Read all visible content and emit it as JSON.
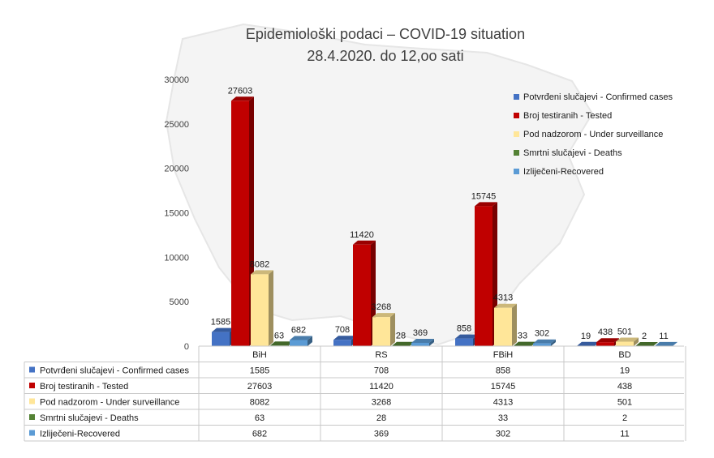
{
  "chart_data": {
    "type": "bar",
    "title": "Epidemiološki podaci – COVID-19 situation",
    "subtitle": "28.4.2020. do 12,oo sati",
    "categories": [
      "BiH",
      "RS",
      "FBiH",
      "BD"
    ],
    "ylim": [
      0,
      30000
    ],
    "yticks": [
      0,
      5000,
      10000,
      15000,
      20000,
      25000,
      30000
    ],
    "legend_position": "right",
    "series": [
      {
        "name": "Potvrđeni slučajevi - Confirmed cases",
        "color": "#4472C4",
        "values": [
          1585,
          708,
          858,
          19
        ]
      },
      {
        "name": "Broj testiranih - Tested",
        "color": "#C00000",
        "values": [
          27603,
          11420,
          15745,
          438
        ]
      },
      {
        "name": "Pod nadzorom - Under surveillance",
        "color": "#FFE699",
        "values": [
          8082,
          3268,
          4313,
          501
        ]
      },
      {
        "name": "Smrtni slučajevi - Deaths",
        "color": "#548235",
        "values": [
          63,
          28,
          33,
          2
        ]
      },
      {
        "name": "Izliječeni-Recovered",
        "color": "#5B9BD5",
        "values": [
          682,
          369,
          302,
          11
        ]
      }
    ]
  }
}
